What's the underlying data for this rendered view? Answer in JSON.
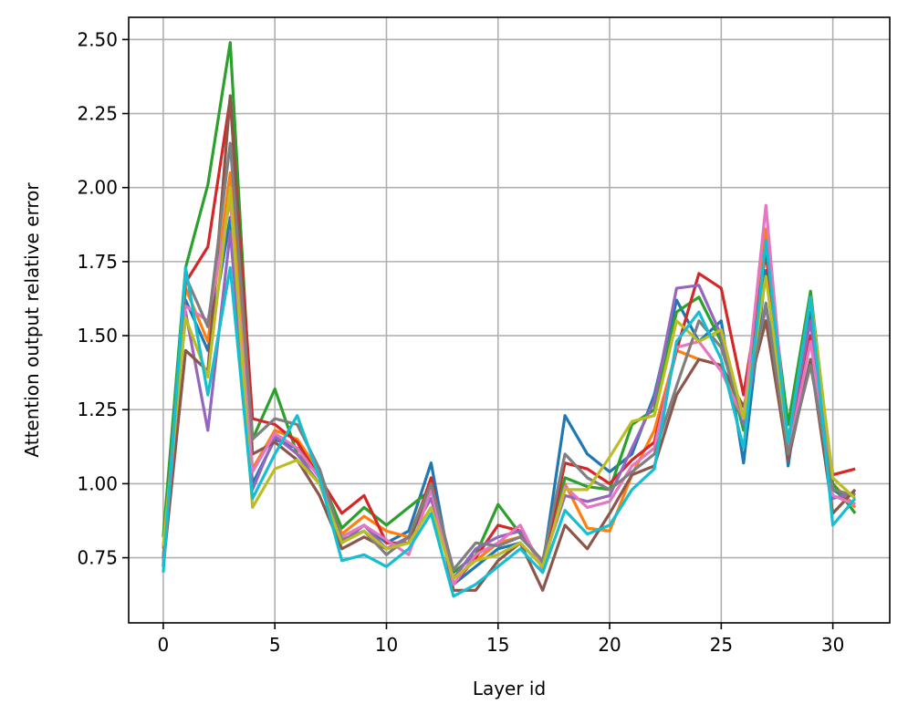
{
  "chart_data": {
    "type": "line",
    "title": "",
    "xlabel": "Layer id",
    "ylabel": "Attention output relative error",
    "xlim": [
      -1.55,
      32.55
    ],
    "ylim": [
      0.53,
      2.575
    ],
    "xticks": [
      0,
      5,
      10,
      15,
      20,
      25,
      30
    ],
    "yticks": [
      0.75,
      1.0,
      1.25,
      1.5,
      1.75,
      2.0,
      2.25,
      2.5
    ],
    "xtick_labels": [
      "0",
      "5",
      "10",
      "15",
      "20",
      "25",
      "30"
    ],
    "ytick_labels": [
      "0.75",
      "1.00",
      "1.25",
      "1.50",
      "1.75",
      "2.00",
      "2.25",
      "2.50"
    ],
    "grid": true,
    "legend": false,
    "x": [
      0,
      1,
      2,
      3,
      4,
      5,
      6,
      7,
      8,
      9,
      10,
      11,
      12,
      13,
      14,
      15,
      16,
      17,
      18,
      19,
      20,
      21,
      22,
      23,
      24,
      25,
      26,
      27,
      28,
      29,
      30,
      31
    ],
    "series": [
      {
        "color": "#1f77b4",
        "values": [
          0.74,
          1.62,
          1.45,
          1.9,
          1.0,
          1.15,
          1.12,
          1.05,
          0.82,
          0.86,
          0.8,
          0.84,
          1.07,
          0.66,
          0.72,
          0.78,
          0.8,
          0.72,
          1.23,
          1.1,
          1.04,
          1.1,
          1.3,
          1.62,
          1.48,
          1.55,
          1.07,
          1.72,
          1.06,
          1.58,
          0.98,
          0.93
        ]
      },
      {
        "color": "#ff7f0e",
        "values": [
          0.78,
          1.66,
          1.48,
          2.05,
          1.05,
          1.18,
          1.15,
          1.04,
          0.83,
          0.89,
          0.84,
          0.82,
          1.01,
          0.68,
          0.74,
          0.8,
          0.82,
          0.74,
          1.0,
          0.85,
          0.84,
          1.03,
          1.18,
          1.45,
          1.42,
          1.4,
          1.2,
          1.86,
          1.08,
          1.5,
          1.0,
          0.92
        ]
      },
      {
        "color": "#2ca02c",
        "values": [
          0.82,
          1.73,
          2.01,
          2.49,
          1.15,
          1.32,
          1.1,
          1.03,
          0.85,
          0.92,
          0.86,
          0.92,
          0.98,
          0.7,
          0.76,
          0.93,
          0.83,
          0.73,
          1.02,
          0.99,
          0.98,
          1.2,
          1.25,
          1.58,
          1.63,
          1.48,
          1.18,
          1.8,
          1.2,
          1.65,
          1.0,
          0.9
        ]
      },
      {
        "color": "#d62728",
        "values": [
          0.75,
          1.68,
          1.8,
          2.3,
          1.22,
          1.2,
          1.14,
          1.02,
          0.9,
          0.96,
          0.8,
          0.8,
          1.02,
          0.66,
          0.75,
          0.86,
          0.84,
          0.72,
          1.07,
          1.05,
          1.0,
          1.08,
          1.14,
          1.45,
          1.71,
          1.66,
          1.3,
          1.78,
          1.12,
          1.5,
          1.03,
          1.05
        ]
      },
      {
        "color": "#9467bd",
        "values": [
          0.72,
          1.58,
          1.18,
          1.85,
          0.98,
          1.16,
          1.1,
          1.0,
          0.8,
          0.86,
          0.78,
          0.82,
          0.95,
          0.68,
          0.78,
          0.82,
          0.84,
          0.73,
          0.96,
          0.94,
          0.96,
          1.12,
          1.28,
          1.66,
          1.67,
          1.5,
          1.2,
          1.6,
          1.15,
          1.55,
          0.95,
          0.97
        ]
      },
      {
        "color": "#8c564b",
        "values": [
          0.72,
          1.45,
          1.38,
          2.31,
          1.1,
          1.14,
          1.08,
          0.96,
          0.78,
          0.82,
          0.78,
          0.8,
          1.0,
          0.64,
          0.64,
          0.74,
          0.8,
          0.64,
          0.86,
          0.78,
          0.9,
          1.03,
          1.06,
          1.3,
          1.42,
          1.4,
          1.26,
          1.55,
          1.08,
          1.42,
          0.9,
          0.98
        ]
      },
      {
        "color": "#e377c2",
        "values": [
          0.74,
          1.6,
          1.55,
          1.96,
          1.04,
          1.17,
          1.12,
          1.02,
          0.82,
          0.86,
          0.81,
          0.76,
          0.98,
          0.66,
          0.76,
          0.8,
          0.86,
          0.71,
          0.99,
          0.92,
          0.94,
          1.06,
          1.12,
          1.46,
          1.48,
          1.38,
          1.22,
          1.94,
          1.1,
          1.48,
          0.96,
          0.93
        ]
      },
      {
        "color": "#7f7f7f",
        "values": [
          0.75,
          1.7,
          1.53,
          2.15,
          1.15,
          1.22,
          1.2,
          1.05,
          0.81,
          0.84,
          0.76,
          0.82,
          1.0,
          0.71,
          0.8,
          0.79,
          0.82,
          0.74,
          1.1,
          1.02,
          0.98,
          1.04,
          1.1,
          1.33,
          1.55,
          1.46,
          1.22,
          1.61,
          1.1,
          1.4,
          0.98,
          0.96
        ]
      },
      {
        "color": "#bcbd22",
        "values": [
          0.79,
          1.56,
          1.36,
          2.0,
          0.92,
          1.05,
          1.08,
          1.0,
          0.8,
          0.84,
          0.78,
          0.8,
          0.92,
          0.68,
          0.74,
          0.76,
          0.8,
          0.72,
          0.98,
          0.98,
          1.09,
          1.21,
          1.23,
          1.55,
          1.48,
          1.52,
          1.22,
          1.7,
          1.14,
          1.63,
          1.02,
          0.95
        ]
      },
      {
        "color": "#17becf",
        "values": [
          0.7,
          1.73,
          1.3,
          1.73,
          0.95,
          1.1,
          1.23,
          1.02,
          0.74,
          0.76,
          0.72,
          0.78,
          0.9,
          0.62,
          0.66,
          0.72,
          0.78,
          0.7,
          0.91,
          0.83,
          0.86,
          0.98,
          1.05,
          1.48,
          1.58,
          1.42,
          1.12,
          1.82,
          1.14,
          1.63,
          0.86,
          0.95
        ]
      }
    ]
  }
}
